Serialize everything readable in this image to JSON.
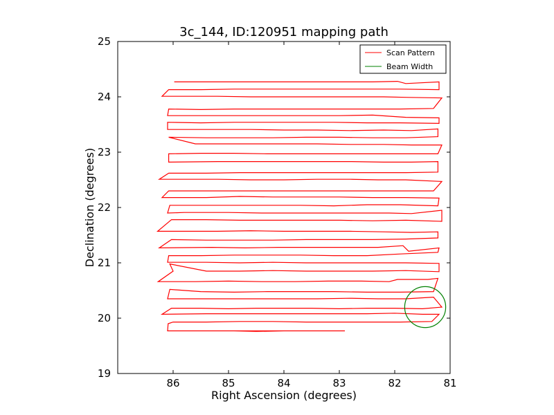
{
  "chart_data": {
    "type": "line",
    "title": "3c_144, ID:120951 mapping path",
    "xlabel": "Right Ascension (degrees)",
    "ylabel": "Declination (degrees)",
    "xlim": [
      87,
      81
    ],
    "ylim": [
      19,
      25
    ],
    "x_inverted": true,
    "xticks": [
      86,
      85,
      84,
      83,
      82,
      81
    ],
    "yticks": [
      19,
      20,
      21,
      22,
      23,
      24,
      25
    ],
    "grid": false,
    "legend_position": "top-right",
    "series": [
      {
        "name": "Scan Pattern",
        "color": "#ff0000",
        "style": "line",
        "points": [
          [
            86.1,
            19.77
          ],
          [
            85.5,
            19.77
          ],
          [
            84.9,
            19.77
          ],
          [
            84.5,
            19.76
          ],
          [
            84.0,
            19.77
          ],
          [
            83.5,
            19.77
          ],
          [
            82.9,
            19.77
          ],
          [
            86.1,
            19.77
          ],
          [
            86.09,
            19.9
          ],
          [
            86.0,
            19.93
          ],
          [
            85.4,
            19.93
          ],
          [
            84.8,
            19.94
          ],
          [
            84.2,
            19.94
          ],
          [
            83.6,
            19.93
          ],
          [
            83.0,
            19.93
          ],
          [
            82.4,
            19.93
          ],
          [
            81.9,
            19.93
          ],
          [
            81.33,
            19.94
          ],
          [
            81.2,
            20.07
          ],
          [
            81.5,
            20.07
          ],
          [
            82.0,
            20.09
          ],
          [
            82.5,
            20.08
          ],
          [
            83.0,
            20.08
          ],
          [
            83.6,
            20.08
          ],
          [
            84.2,
            20.08
          ],
          [
            84.8,
            20.08
          ],
          [
            85.4,
            20.08
          ],
          [
            86.2,
            20.07
          ],
          [
            86.03,
            20.18
          ],
          [
            85.5,
            20.18
          ],
          [
            85.0,
            20.17
          ],
          [
            84.5,
            20.18
          ],
          [
            84.0,
            20.18
          ],
          [
            83.5,
            20.18
          ],
          [
            83.0,
            20.17
          ],
          [
            82.5,
            20.18
          ],
          [
            82.0,
            20.18
          ],
          [
            81.5,
            20.17
          ],
          [
            81.15,
            20.2
          ],
          [
            81.3,
            20.38
          ],
          [
            81.8,
            20.35
          ],
          [
            82.3,
            20.35
          ],
          [
            82.8,
            20.36
          ],
          [
            83.4,
            20.35
          ],
          [
            84.0,
            20.35
          ],
          [
            84.6,
            20.35
          ],
          [
            85.2,
            20.35
          ],
          [
            85.8,
            20.35
          ],
          [
            86.1,
            20.35
          ],
          [
            86.06,
            20.52
          ],
          [
            85.5,
            20.48
          ],
          [
            84.9,
            20.47
          ],
          [
            84.3,
            20.48
          ],
          [
            83.7,
            20.48
          ],
          [
            83.1,
            20.48
          ],
          [
            82.5,
            20.47
          ],
          [
            81.9,
            20.47
          ],
          [
            81.3,
            20.48
          ],
          [
            81.22,
            20.72
          ],
          [
            81.4,
            20.7
          ],
          [
            81.95,
            20.7
          ],
          [
            82.1,
            20.66
          ],
          [
            82.6,
            20.67
          ],
          [
            83.2,
            20.67
          ],
          [
            83.8,
            20.66
          ],
          [
            84.4,
            20.66
          ],
          [
            85.0,
            20.67
          ],
          [
            85.6,
            20.66
          ],
          [
            86.27,
            20.66
          ],
          [
            86.0,
            20.85
          ],
          [
            86.06,
            20.98
          ],
          [
            85.4,
            20.85
          ],
          [
            84.8,
            20.85
          ],
          [
            84.2,
            20.86
          ],
          [
            83.6,
            20.85
          ],
          [
            83.0,
            20.85
          ],
          [
            82.4,
            20.85
          ],
          [
            81.8,
            20.86
          ],
          [
            81.2,
            20.84
          ],
          [
            81.2,
            20.99
          ],
          [
            81.8,
            21.0
          ],
          [
            82.4,
            21.0
          ],
          [
            83.0,
            21.0
          ],
          [
            83.6,
            21.0
          ],
          [
            84.2,
            21.01
          ],
          [
            84.8,
            21.0
          ],
          [
            85.4,
            21.01
          ],
          [
            86.1,
            21.01
          ],
          [
            86.08,
            21.13
          ],
          [
            85.5,
            21.13
          ],
          [
            84.9,
            21.14
          ],
          [
            84.3,
            21.14
          ],
          [
            83.7,
            21.14
          ],
          [
            83.1,
            21.13
          ],
          [
            82.5,
            21.13
          ],
          [
            81.9,
            21.16
          ],
          [
            81.22,
            21.19
          ],
          [
            81.2,
            21.27
          ],
          [
            81.75,
            21.21
          ],
          [
            81.85,
            21.31
          ],
          [
            82.3,
            21.28
          ],
          [
            82.9,
            21.28
          ],
          [
            83.5,
            21.28
          ],
          [
            84.1,
            21.28
          ],
          [
            84.7,
            21.27
          ],
          [
            85.3,
            21.28
          ],
          [
            86.25,
            21.27
          ],
          [
            86.03,
            21.42
          ],
          [
            85.4,
            21.41
          ],
          [
            84.8,
            21.41
          ],
          [
            84.2,
            21.41
          ],
          [
            83.6,
            21.42
          ],
          [
            83.0,
            21.42
          ],
          [
            82.4,
            21.42
          ],
          [
            81.8,
            21.43
          ],
          [
            81.22,
            21.45
          ],
          [
            81.22,
            21.56
          ],
          [
            81.7,
            21.55
          ],
          [
            82.2,
            21.56
          ],
          [
            82.8,
            21.57
          ],
          [
            83.4,
            21.57
          ],
          [
            84.0,
            21.57
          ],
          [
            84.6,
            21.58
          ],
          [
            85.2,
            21.57
          ],
          [
            86.28,
            21.57
          ],
          [
            86.03,
            21.78
          ],
          [
            85.4,
            21.78
          ],
          [
            84.8,
            21.77
          ],
          [
            84.2,
            21.77
          ],
          [
            83.6,
            21.77
          ],
          [
            83.0,
            21.77
          ],
          [
            82.4,
            21.76
          ],
          [
            81.8,
            21.77
          ],
          [
            81.15,
            21.75
          ],
          [
            81.15,
            21.95
          ],
          [
            81.7,
            21.89
          ],
          [
            82.1,
            21.9
          ],
          [
            82.6,
            21.9
          ],
          [
            83.2,
            21.9
          ],
          [
            83.8,
            21.9
          ],
          [
            84.4,
            21.9
          ],
          [
            85.0,
            21.91
          ],
          [
            85.8,
            21.91
          ],
          [
            86.1,
            21.9
          ],
          [
            86.06,
            22.04
          ],
          [
            85.5,
            22.04
          ],
          [
            84.9,
            22.04
          ],
          [
            84.3,
            22.04
          ],
          [
            83.7,
            22.04
          ],
          [
            83.1,
            22.03
          ],
          [
            82.5,
            22.05
          ],
          [
            81.9,
            22.05
          ],
          [
            81.22,
            22.03
          ],
          [
            81.2,
            22.17
          ],
          [
            81.8,
            22.18
          ],
          [
            82.4,
            22.18
          ],
          [
            83.0,
            22.19
          ],
          [
            83.6,
            22.19
          ],
          [
            84.2,
            22.19
          ],
          [
            84.8,
            22.2
          ],
          [
            85.4,
            22.18
          ],
          [
            86.2,
            22.18
          ],
          [
            86.08,
            22.3
          ],
          [
            85.5,
            22.3
          ],
          [
            84.9,
            22.3
          ],
          [
            84.3,
            22.3
          ],
          [
            83.7,
            22.3
          ],
          [
            83.1,
            22.3
          ],
          [
            82.5,
            22.3
          ],
          [
            81.9,
            22.3
          ],
          [
            81.3,
            22.3
          ],
          [
            81.15,
            22.47
          ],
          [
            81.8,
            22.5
          ],
          [
            82.3,
            22.5
          ],
          [
            82.8,
            22.51
          ],
          [
            83.4,
            22.51
          ],
          [
            84.0,
            22.5
          ],
          [
            84.6,
            22.5
          ],
          [
            85.2,
            22.51
          ],
          [
            86.25,
            22.51
          ],
          [
            86.08,
            22.62
          ],
          [
            85.4,
            22.62
          ],
          [
            84.8,
            22.63
          ],
          [
            84.2,
            22.63
          ],
          [
            83.6,
            22.63
          ],
          [
            83.0,
            22.63
          ],
          [
            82.4,
            22.63
          ],
          [
            81.8,
            22.63
          ],
          [
            81.22,
            22.64
          ],
          [
            81.22,
            22.83
          ],
          [
            81.7,
            22.82
          ],
          [
            82.2,
            22.82
          ],
          [
            82.8,
            22.83
          ],
          [
            83.4,
            22.83
          ],
          [
            84.0,
            22.83
          ],
          [
            84.6,
            22.83
          ],
          [
            85.2,
            22.83
          ],
          [
            86.08,
            22.82
          ],
          [
            86.08,
            22.97
          ],
          [
            85.5,
            22.98
          ],
          [
            84.9,
            22.98
          ],
          [
            84.3,
            22.97
          ],
          [
            83.7,
            22.97
          ],
          [
            83.1,
            22.97
          ],
          [
            82.5,
            22.97
          ],
          [
            81.9,
            22.97
          ],
          [
            81.22,
            22.97
          ],
          [
            81.15,
            23.13
          ],
          [
            81.7,
            23.13
          ],
          [
            82.2,
            23.14
          ],
          [
            82.8,
            23.14
          ],
          [
            83.4,
            23.15
          ],
          [
            84.0,
            23.15
          ],
          [
            84.6,
            23.15
          ],
          [
            85.6,
            23.15
          ],
          [
            86.08,
            23.27
          ],
          [
            85.4,
            23.26
          ],
          [
            84.8,
            23.26
          ],
          [
            84.2,
            23.26
          ],
          [
            83.6,
            23.27
          ],
          [
            83.0,
            23.27
          ],
          [
            82.4,
            23.26
          ],
          [
            81.8,
            23.26
          ],
          [
            81.22,
            23.28
          ],
          [
            81.22,
            23.42
          ],
          [
            81.7,
            23.39
          ],
          [
            82.2,
            23.4
          ],
          [
            82.8,
            23.39
          ],
          [
            83.4,
            23.4
          ],
          [
            84.0,
            23.4
          ],
          [
            84.6,
            23.41
          ],
          [
            85.2,
            23.41
          ],
          [
            86.1,
            23.41
          ],
          [
            86.1,
            23.54
          ],
          [
            85.5,
            23.53
          ],
          [
            84.9,
            23.54
          ],
          [
            84.3,
            23.54
          ],
          [
            83.7,
            23.54
          ],
          [
            83.1,
            23.54
          ],
          [
            82.5,
            23.53
          ],
          [
            81.9,
            23.53
          ],
          [
            81.2,
            23.52
          ],
          [
            81.2,
            23.62
          ],
          [
            81.8,
            23.63
          ],
          [
            82.4,
            23.67
          ],
          [
            83.0,
            23.66
          ],
          [
            83.6,
            23.66
          ],
          [
            84.2,
            23.66
          ],
          [
            84.8,
            23.66
          ],
          [
            85.4,
            23.66
          ],
          [
            86.1,
            23.66
          ],
          [
            86.08,
            23.78
          ],
          [
            85.5,
            23.77
          ],
          [
            84.9,
            23.78
          ],
          [
            84.3,
            23.78
          ],
          [
            83.7,
            23.78
          ],
          [
            83.1,
            23.78
          ],
          [
            82.5,
            23.78
          ],
          [
            81.9,
            23.78
          ],
          [
            81.3,
            23.79
          ],
          [
            81.15,
            23.98
          ],
          [
            81.75,
            23.99
          ],
          [
            82.2,
            24.0
          ],
          [
            82.8,
            24.0
          ],
          [
            83.4,
            24.0
          ],
          [
            84.0,
            24.0
          ],
          [
            84.6,
            24.0
          ],
          [
            85.2,
            24.01
          ],
          [
            86.2,
            24.01
          ],
          [
            86.08,
            24.13
          ],
          [
            85.5,
            24.13
          ],
          [
            84.9,
            24.14
          ],
          [
            84.3,
            24.14
          ],
          [
            83.7,
            24.14
          ],
          [
            83.1,
            24.14
          ],
          [
            82.5,
            24.14
          ],
          [
            81.9,
            24.14
          ],
          [
            81.2,
            24.13
          ],
          [
            81.2,
            24.27
          ],
          [
            81.8,
            24.24
          ],
          [
            81.95,
            24.28
          ],
          [
            82.4,
            24.27
          ],
          [
            83.0,
            24.27
          ],
          [
            83.6,
            24.27
          ],
          [
            84.2,
            24.27
          ],
          [
            84.8,
            24.27
          ],
          [
            85.4,
            24.27
          ],
          [
            85.98,
            24.27
          ]
        ]
      },
      {
        "name": "Beam Width",
        "color": "#008000",
        "style": "circle",
        "center": [
          81.45,
          20.2
        ],
        "radius": 0.37
      }
    ]
  }
}
